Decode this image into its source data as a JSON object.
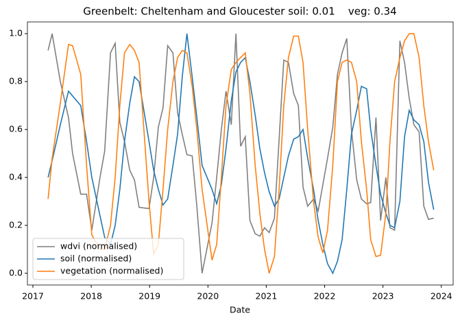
{
  "chart_data": {
    "type": "line",
    "title": "Greenbelt: Cheltenham and Gloucester soil: 0.01    veg: 0.34",
    "xlabel": "Date",
    "x": [
      2017.26,
      2017.33,
      2017.47,
      2017.61,
      2017.68,
      2017.82,
      2017.92,
      2018.01,
      2018.15,
      2018.23,
      2018.33,
      2018.41,
      2018.49,
      2018.57,
      2018.66,
      2018.74,
      2018.82,
      2018.99,
      2019.07,
      2019.15,
      2019.23,
      2019.31,
      2019.4,
      2019.48,
      2019.56,
      2019.64,
      2019.73,
      2019.81,
      2019.9,
      2020.07,
      2020.15,
      2020.23,
      2020.31,
      2020.4,
      2020.48,
      2020.56,
      2020.64,
      2020.72,
      2020.81,
      2020.89,
      2020.97,
      2021.05,
      2021.14,
      2021.22,
      2021.3,
      2021.38,
      2021.47,
      2021.55,
      2021.63,
      2021.71,
      2021.81,
      2021.89,
      2021.97,
      2022.05,
      2022.14,
      2022.22,
      2022.3,
      2022.38,
      2022.46,
      2022.55,
      2022.63,
      2022.72,
      2022.79,
      2022.88,
      2022.96,
      2023.05,
      2023.12,
      2023.2,
      2023.29,
      2023.37,
      2023.45,
      2023.53,
      2023.62,
      2023.7,
      2023.78,
      2023.87
    ],
    "series": [
      {
        "name": "wdvi (normalised)",
        "color": "#7f7f7f",
        "values": [
          0.93,
          1.0,
          0.8,
          0.65,
          0.5,
          0.33,
          0.33,
          0.18,
          0.4,
          0.51,
          0.92,
          0.96,
          0.63,
          0.55,
          0.43,
          0.39,
          0.275,
          0.27,
          0.4,
          0.61,
          0.69,
          0.95,
          0.92,
          0.67,
          0.58,
          0.495,
          0.49,
          0.28,
          0.0,
          0.21,
          0.4,
          0.6,
          0.76,
          0.62,
          1.0,
          0.53,
          0.57,
          0.22,
          0.165,
          0.155,
          0.19,
          0.17,
          0.23,
          0.56,
          0.89,
          0.88,
          0.75,
          0.7,
          0.36,
          0.28,
          0.31,
          0.26,
          0.37,
          0.48,
          0.61,
          0.83,
          0.92,
          0.98,
          0.6,
          0.39,
          0.31,
          0.29,
          0.295,
          0.65,
          0.22,
          0.4,
          0.19,
          0.18,
          0.97,
          0.88,
          0.73,
          0.62,
          0.59,
          0.28,
          0.225,
          0.23
        ]
      },
      {
        "name": "soil (normalised)",
        "color": "#1f77b4",
        "values": [
          0.4,
          0.47,
          0.62,
          0.76,
          0.74,
          0.7,
          0.55,
          0.4,
          0.24,
          0.15,
          0.12,
          0.2,
          0.35,
          0.55,
          0.71,
          0.82,
          0.8,
          0.55,
          0.43,
          0.35,
          0.285,
          0.31,
          0.45,
          0.58,
          0.82,
          1.0,
          0.82,
          0.65,
          0.45,
          0.35,
          0.29,
          0.37,
          0.52,
          0.72,
          0.84,
          0.88,
          0.9,
          0.8,
          0.66,
          0.52,
          0.42,
          0.34,
          0.28,
          0.31,
          0.4,
          0.49,
          0.56,
          0.57,
          0.6,
          0.48,
          0.35,
          0.22,
          0.12,
          0.04,
          0.0,
          0.05,
          0.14,
          0.35,
          0.58,
          0.68,
          0.78,
          0.77,
          0.6,
          0.45,
          0.33,
          0.25,
          0.2,
          0.19,
          0.3,
          0.57,
          0.68,
          0.64,
          0.62,
          0.55,
          0.38,
          0.265
        ]
      },
      {
        "name": "vegetation (normalised)",
        "color": "#ff7f0e",
        "values": [
          0.31,
          0.48,
          0.71,
          0.955,
          0.95,
          0.83,
          0.45,
          0.16,
          0.1,
          0.1,
          0.2,
          0.4,
          0.7,
          0.92,
          0.955,
          0.93,
          0.88,
          0.3,
          0.08,
          0.12,
          0.35,
          0.6,
          0.8,
          0.9,
          0.93,
          0.92,
          0.78,
          0.6,
          0.35,
          0.055,
          0.12,
          0.4,
          0.7,
          0.85,
          0.88,
          0.9,
          0.92,
          0.75,
          0.45,
          0.25,
          0.1,
          0.0,
          0.07,
          0.35,
          0.7,
          0.9,
          0.99,
          0.99,
          0.88,
          0.6,
          0.3,
          0.15,
          0.085,
          0.18,
          0.45,
          0.8,
          0.88,
          0.89,
          0.88,
          0.8,
          0.55,
          0.35,
          0.14,
          0.07,
          0.075,
          0.25,
          0.55,
          0.8,
          0.9,
          0.97,
          1.0,
          1.0,
          0.9,
          0.7,
          0.55,
          0.43
        ]
      }
    ],
    "xlim": [
      2016.906,
      2024.203
    ],
    "xticks": [
      2017,
      2018,
      2019,
      2020,
      2021,
      2022,
      2023,
      2024
    ],
    "ylim": [
      -0.049,
      1.049
    ],
    "yticks": [
      {
        "value": 0,
        "label": "0.0"
      },
      {
        "value": 0.2,
        "label": "0.2"
      },
      {
        "value": 0.4,
        "label": "0.4"
      },
      {
        "value": 0.6,
        "label": "0.6"
      },
      {
        "value": 0.8,
        "label": "0.8"
      },
      {
        "value": 1,
        "label": "1.0"
      }
    ],
    "legend": "lower left"
  }
}
